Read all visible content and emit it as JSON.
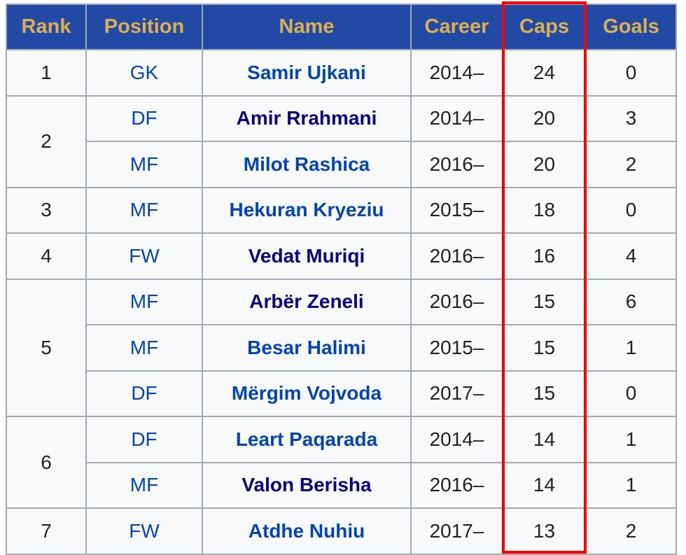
{
  "headers": [
    "Rank",
    "Position",
    "Name",
    "Career",
    "Caps",
    "Goals"
  ],
  "highlight": {
    "column": "Caps",
    "color": "#ff0000"
  },
  "rows": [
    {
      "rank": "1",
      "position": "GK",
      "name": "Samir Ujkani",
      "career": "2014–",
      "caps": "24",
      "goals": "0",
      "visited": false
    },
    {
      "rank": "2",
      "position": "DF",
      "name": "Amir Rrahmani",
      "career": "2014–",
      "caps": "20",
      "goals": "3",
      "visited": true
    },
    {
      "rank": "",
      "position": "MF",
      "name": "Milot Rashica",
      "career": "2016–",
      "caps": "20",
      "goals": "2",
      "visited": false
    },
    {
      "rank": "3",
      "position": "MF",
      "name": "Hekuran Kryeziu",
      "career": "2015–",
      "caps": "18",
      "goals": "0",
      "visited": false
    },
    {
      "rank": "4",
      "position": "FW",
      "name": "Vedat Muriqi",
      "career": "2016–",
      "caps": "16",
      "goals": "4",
      "visited": true
    },
    {
      "rank": "5",
      "position": "MF",
      "name": "Arbër Zeneli",
      "career": "2016–",
      "caps": "15",
      "goals": "6",
      "visited": true
    },
    {
      "rank": "",
      "position": "MF",
      "name": "Besar Halimi",
      "career": "2015–",
      "caps": "15",
      "goals": "1",
      "visited": false
    },
    {
      "rank": "",
      "position": "DF",
      "name": "Mërgim Vojvoda",
      "career": "2017–",
      "caps": "15",
      "goals": "0",
      "visited": false
    },
    {
      "rank": "6",
      "position": "DF",
      "name": "Leart Paqarada",
      "career": "2014–",
      "caps": "14",
      "goals": "1",
      "visited": false
    },
    {
      "rank": "",
      "position": "MF",
      "name": "Valon Berisha",
      "career": "2016–",
      "caps": "14",
      "goals": "1",
      "visited": true
    },
    {
      "rank": "7",
      "position": "FW",
      "name": "Atdhe Nuhiu",
      "career": "2017–",
      "caps": "13",
      "goals": "2",
      "visited": false
    }
  ],
  "rank_spans": [
    1,
    2,
    0,
    1,
    1,
    3,
    0,
    0,
    2,
    0,
    1
  ]
}
